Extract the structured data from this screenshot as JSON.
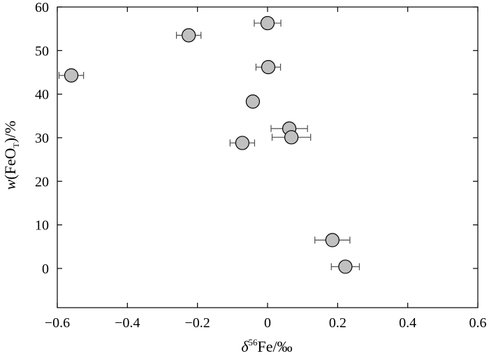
{
  "chart_data": {
    "type": "scatter",
    "xlim": [
      -0.6,
      0.6
    ],
    "ylim": [
      -9,
      60
    ],
    "x_ticks": [
      -0.6,
      -0.4,
      -0.2,
      0,
      0.2,
      0.4,
      0.6
    ],
    "x_tick_labels": [
      "−0.6",
      "−0.4",
      "−0.2",
      "0",
      "0.2",
      "0.4",
      "0.6"
    ],
    "y_ticks": [
      0,
      10,
      20,
      30,
      40,
      50,
      60
    ],
    "y_tick_labels": [
      "0",
      "10",
      "20",
      "30",
      "40",
      "50",
      "60"
    ],
    "grid": false,
    "xlabel": {
      "symbol": "δ",
      "superscript": "56",
      "rest": "Fe/‰"
    },
    "ylabel": {
      "symbol": "w",
      "open": "(FeO",
      "subscript": "T",
      "close": ")/%"
    },
    "marker_fill": "#c0c0c0",
    "marker_edge": "#000000",
    "errorbar_color": "#4d4d4d",
    "points": [
      {
        "x": -0.56,
        "y": 44.3,
        "xerr": 0.035
      },
      {
        "x": -0.225,
        "y": 53.5,
        "xerr": 0.035
      },
      {
        "x": 0.0,
        "y": 56.3,
        "xerr": 0.038
      },
      {
        "x": 0.002,
        "y": 46.2,
        "xerr": 0.035
      },
      {
        "x": -0.042,
        "y": 38.3,
        "xerr": 0.0
      },
      {
        "x": 0.062,
        "y": 32.1,
        "xerr": 0.052
      },
      {
        "x": 0.068,
        "y": 30.1,
        "xerr": 0.055
      },
      {
        "x": -0.072,
        "y": 28.8,
        "xerr": 0.035
      },
      {
        "x": 0.185,
        "y": 6.5,
        "xerr": 0.05
      },
      {
        "x": 0.222,
        "y": 0.4,
        "xerr": 0.04
      }
    ]
  }
}
